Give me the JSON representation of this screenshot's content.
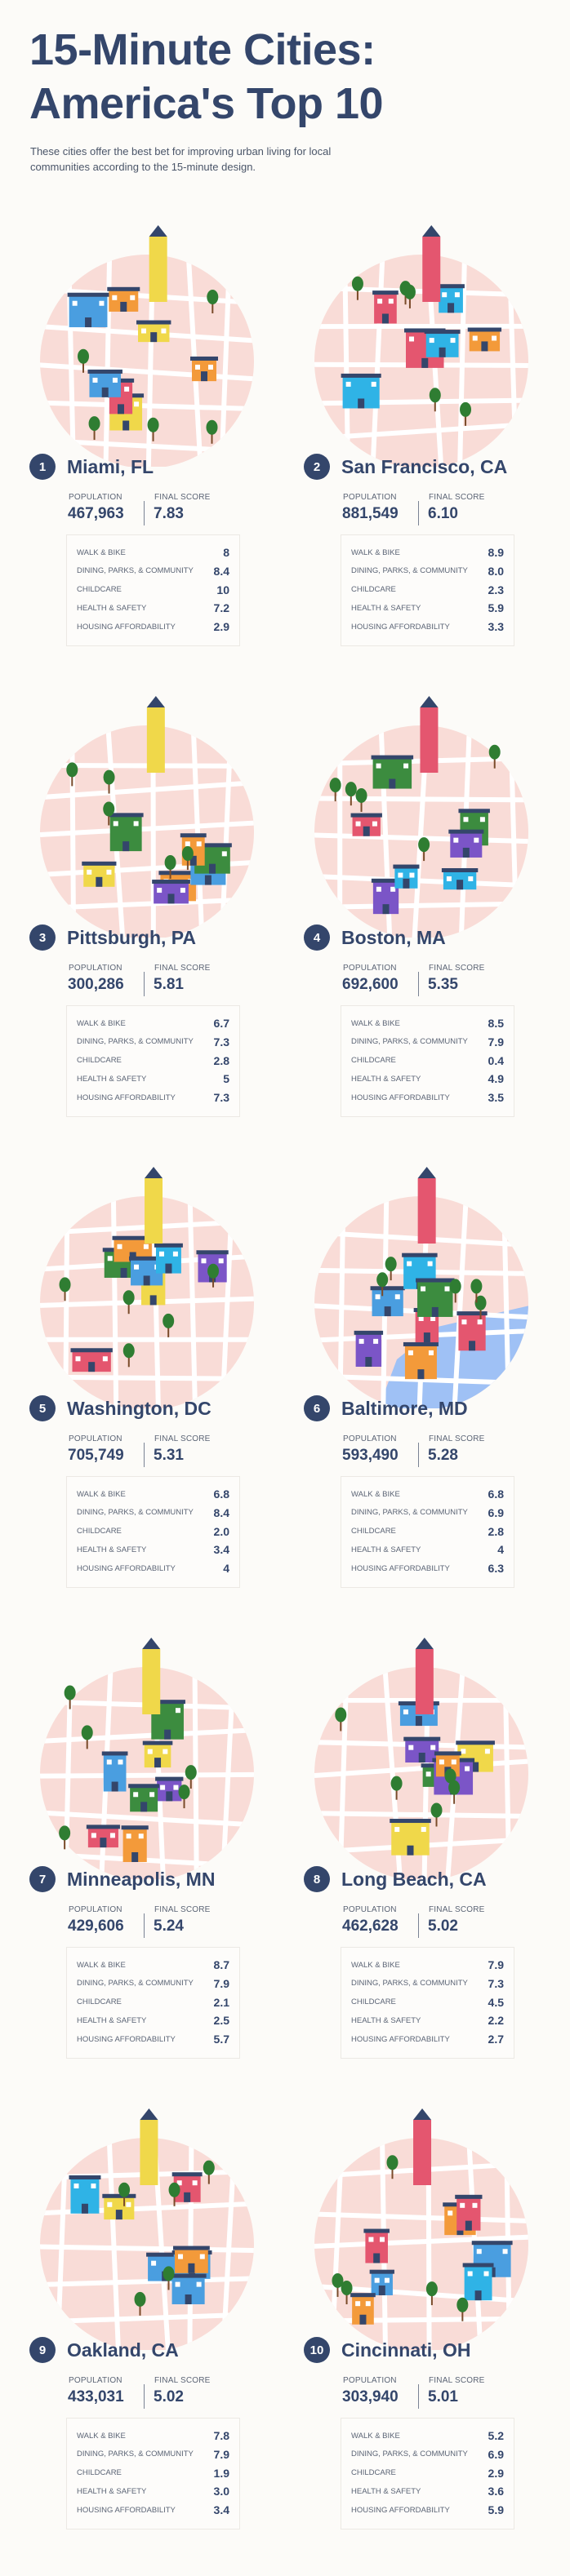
{
  "header": {
    "title_line1": "15-Minute Cities:",
    "title_line2": "America's Top 10",
    "subtitle": "These cities offer the best bet for improving urban living for local communities according to the 15-minute design."
  },
  "labels": {
    "population": "POPULATION",
    "final_score": "FINAL SCORE",
    "categories": [
      "WALK & BIKE",
      "DINING, PARKS, & COMMUNITY",
      "CHILDCARE",
      "HEALTH & SAFETY",
      "HOUSING AFFORDABILITY"
    ]
  },
  "colors": {
    "navy": "#34466b",
    "background": "#fcfbf8",
    "map_pink": "#f9dcd7",
    "water": "#9fc1f5"
  },
  "cities": [
    {
      "rank": "1",
      "name": "Miami, FL",
      "population": "467,963",
      "final_score": "7.83",
      "scores": [
        "8",
        "8.4",
        "10",
        "7.2",
        "2.9"
      ]
    },
    {
      "rank": "2",
      "name": "San Francisco, CA",
      "population": "881,549",
      "final_score": "6.10",
      "scores": [
        "8.9",
        "8.0",
        "2.3",
        "5.9",
        "3.3"
      ]
    },
    {
      "rank": "3",
      "name": "Pittsburgh, PA",
      "population": "300,286",
      "final_score": "5.81",
      "scores": [
        "6.7",
        "7.3",
        "2.8",
        "5",
        "7.3"
      ]
    },
    {
      "rank": "4",
      "name": "Boston, MA",
      "population": "692,600",
      "final_score": "5.35",
      "scores": [
        "8.5",
        "7.9",
        "0.4",
        "4.9",
        "3.5"
      ]
    },
    {
      "rank": "5",
      "name": "Washington, DC",
      "population": "705,749",
      "final_score": "5.31",
      "scores": [
        "6.8",
        "8.4",
        "2.0",
        "3.4",
        "4"
      ]
    },
    {
      "rank": "6",
      "name": "Baltimore, MD",
      "population": "593,490",
      "final_score": "5.28",
      "scores": [
        "6.8",
        "6.9",
        "2.8",
        "4",
        "6.3"
      ]
    },
    {
      "rank": "7",
      "name": "Minneapolis, MN",
      "population": "429,606",
      "final_score": "5.24",
      "scores": [
        "8.7",
        "7.9",
        "2.1",
        "2.5",
        "5.7"
      ]
    },
    {
      "rank": "8",
      "name": "Long Beach, CA",
      "population": "462,628",
      "final_score": "5.02",
      "scores": [
        "7.9",
        "7.3",
        "4.5",
        "2.2",
        "2.7"
      ]
    },
    {
      "rank": "9",
      "name": "Oakland, CA",
      "population": "433,031",
      "final_score": "5.02",
      "scores": [
        "7.8",
        "7.9",
        "1.9",
        "3.0",
        "3.4"
      ]
    },
    {
      "rank": "10",
      "name": "Cincinnati, OH",
      "population": "303,940",
      "final_score": "5.01",
      "scores": [
        "5.2",
        "6.9",
        "2.9",
        "3.6",
        "5.9"
      ]
    }
  ]
}
